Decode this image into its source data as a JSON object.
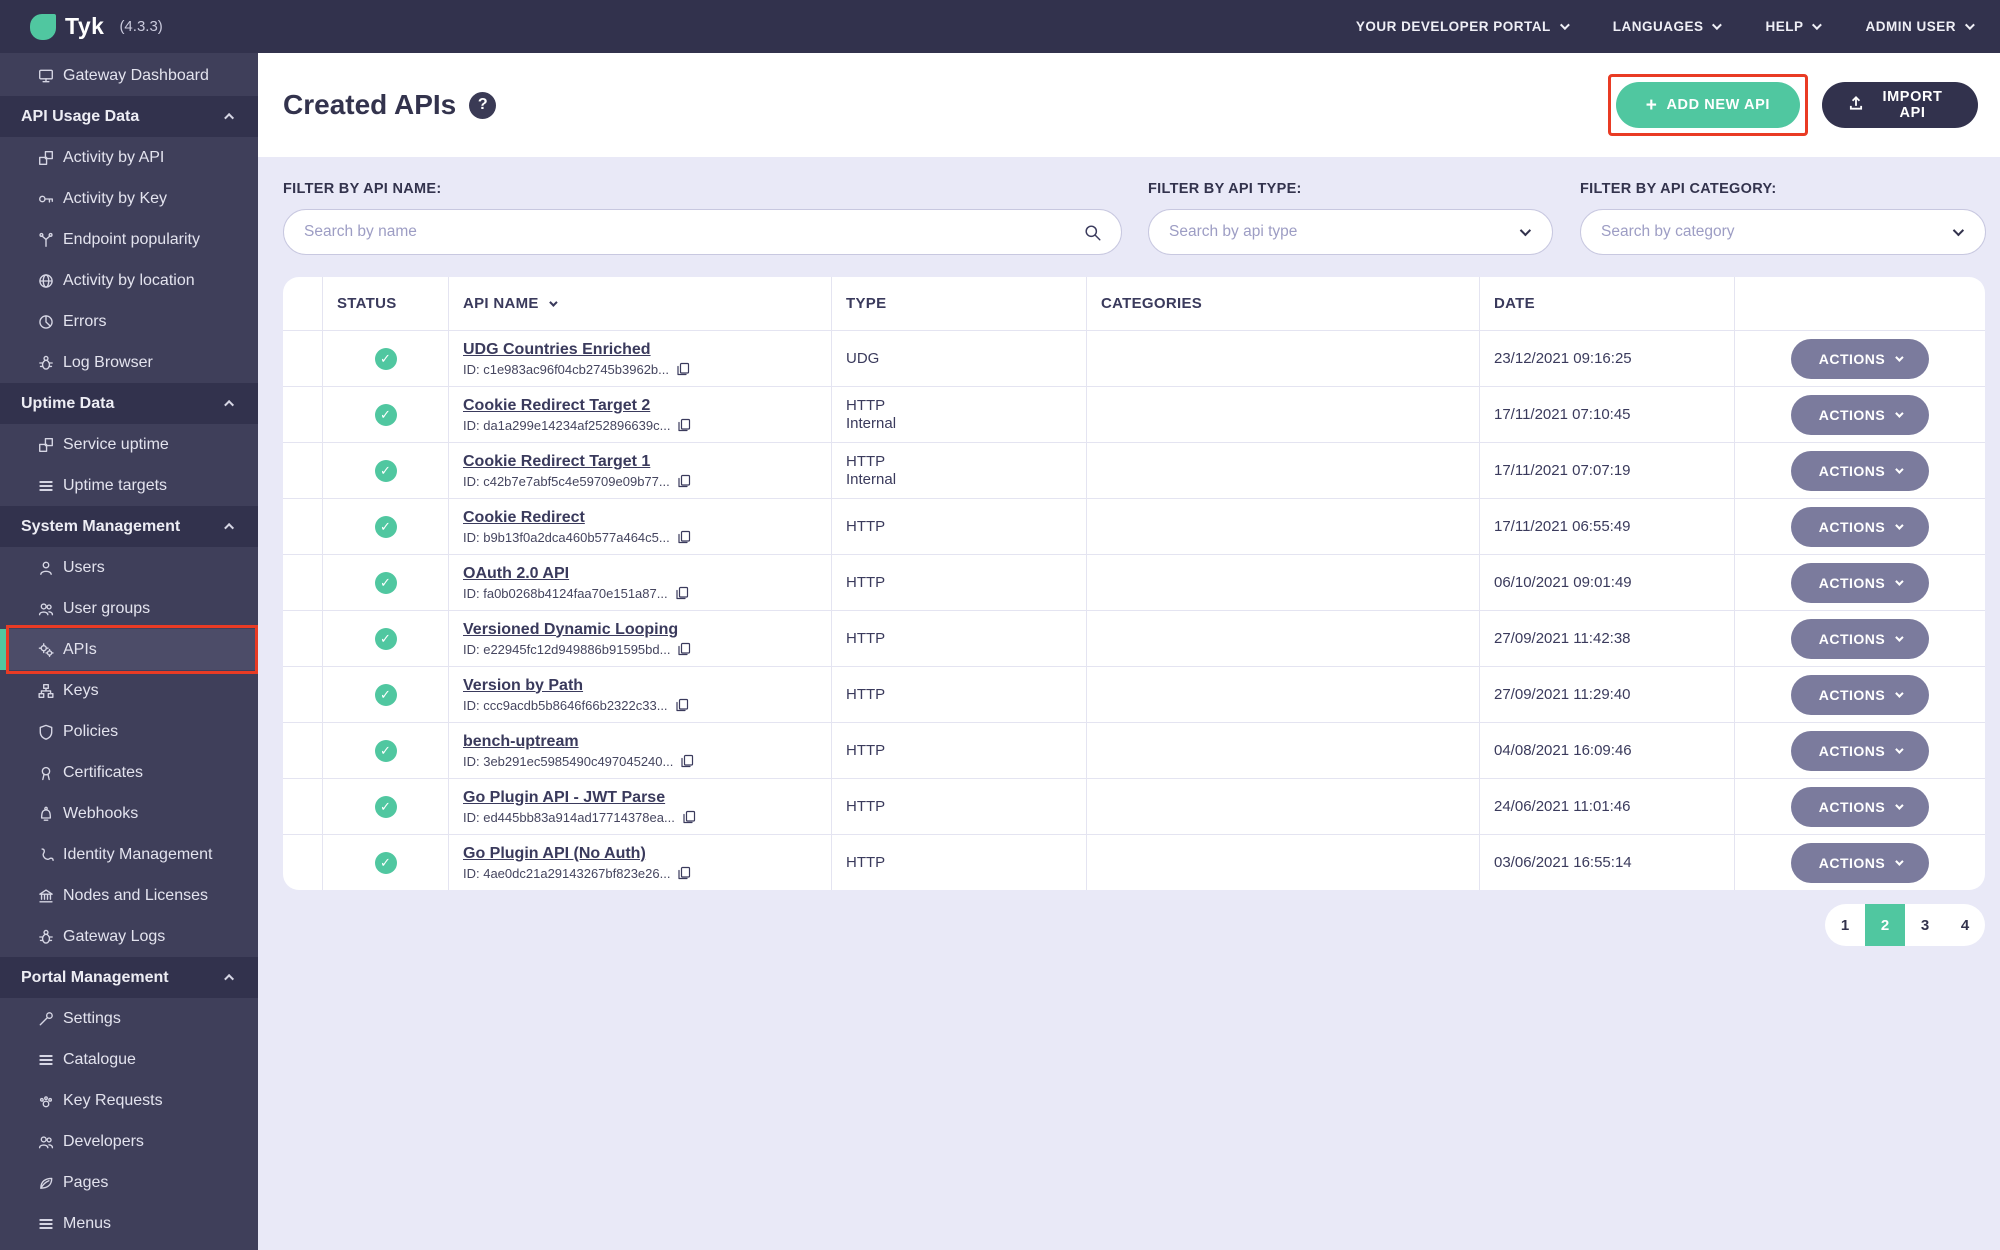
{
  "colors": {
    "topbar": "#32324D",
    "sidebar": "#3F3F5A",
    "accent_teal": "#50C7A0",
    "annotation_red": "#E93B24",
    "panel_lavender": "#E9E9F7",
    "actions_button": "#7B7B9D",
    "text_navy": "#3A3A5C"
  },
  "topbar": {
    "brand": "Tyk",
    "version": "(4.3.3)",
    "logo_icon": "tyk-leaf-icon",
    "menu": [
      {
        "label": "YOUR DEVELOPER PORTAL",
        "icon": "chevron-down-icon"
      },
      {
        "label": "LANGUAGES",
        "icon": "chevron-down-icon"
      },
      {
        "label": "HELP",
        "icon": "chevron-down-icon"
      },
      {
        "label": "ADMIN USER",
        "icon": "chevron-down-icon"
      }
    ]
  },
  "sidebar": {
    "items": [
      {
        "type": "link",
        "label": "Gateway Dashboard",
        "icon": "monitor-icon"
      },
      {
        "type": "section",
        "label": "API Usage Data",
        "icon": "chevron-up-icon"
      },
      {
        "type": "link",
        "label": "Activity by API",
        "icon": "cubes-icon"
      },
      {
        "type": "link",
        "label": "Activity by Key",
        "icon": "key-icon"
      },
      {
        "type": "link",
        "label": "Endpoint popularity",
        "icon": "branch-icon"
      },
      {
        "type": "link",
        "label": "Activity by location",
        "icon": "globe-icon"
      },
      {
        "type": "link",
        "label": "Errors",
        "icon": "pie-icon"
      },
      {
        "type": "link",
        "label": "Log Browser",
        "icon": "bug-icon"
      },
      {
        "type": "section",
        "label": "Uptime Data",
        "icon": "chevron-up-icon"
      },
      {
        "type": "link",
        "label": "Service uptime",
        "icon": "cubes-icon"
      },
      {
        "type": "link",
        "label": "Uptime targets",
        "icon": "list-icon"
      },
      {
        "type": "section",
        "label": "System Management",
        "icon": "chevron-up-icon"
      },
      {
        "type": "link",
        "label": "Users",
        "icon": "user-icon"
      },
      {
        "type": "link",
        "label": "User groups",
        "icon": "users-icon"
      },
      {
        "type": "link",
        "label": "APIs",
        "icon": "gears-icon",
        "selected": true,
        "annotated": true
      },
      {
        "type": "link",
        "label": "Keys",
        "icon": "sitemap-icon"
      },
      {
        "type": "link",
        "label": "Policies",
        "icon": "shield-icon"
      },
      {
        "type": "link",
        "label": "Certificates",
        "icon": "rosette-icon"
      },
      {
        "type": "link",
        "label": "Webhooks",
        "icon": "bell-icon"
      },
      {
        "type": "link",
        "label": "Identity Management",
        "icon": "phone-icon"
      },
      {
        "type": "link",
        "label": "Nodes and Licenses",
        "icon": "bank-icon"
      },
      {
        "type": "link",
        "label": "Gateway Logs",
        "icon": "bug-icon"
      },
      {
        "type": "section",
        "label": "Portal Management",
        "icon": "chevron-up-icon"
      },
      {
        "type": "link",
        "label": "Settings",
        "icon": "wrench-icon"
      },
      {
        "type": "link",
        "label": "Catalogue",
        "icon": "list-icon"
      },
      {
        "type": "link",
        "label": "Key Requests",
        "icon": "paw-icon"
      },
      {
        "type": "link",
        "label": "Developers",
        "icon": "users-icon"
      },
      {
        "type": "link",
        "label": "Pages",
        "icon": "leaf-icon"
      },
      {
        "type": "link",
        "label": "Menus",
        "icon": "menu-icon"
      }
    ]
  },
  "header": {
    "title": "Created APIs",
    "help_icon": "help-icon",
    "help_glyph": "?",
    "add_button": "ADD NEW API",
    "add_icon": "plus-icon",
    "add_plus": "+",
    "import_button": "IMPORT API",
    "import_icon": "upload-icon"
  },
  "filters": [
    {
      "label": "FILTER BY API NAME:",
      "placeholder": "Search by name",
      "kind": "search",
      "icon": "search-icon"
    },
    {
      "label": "FILTER BY API TYPE:",
      "placeholder": "Search by api type",
      "kind": "select",
      "icon": "chevron-down-icon"
    },
    {
      "label": "FILTER BY API CATEGORY:",
      "placeholder": "Search by category",
      "kind": "select",
      "icon": "chevron-down-icon"
    }
  ],
  "table": {
    "columns": [
      "STATUS",
      "API NAME",
      "TYPE",
      "CATEGORIES",
      "DATE"
    ],
    "sort_column": "API NAME",
    "sort_icon": "sort-chevron-icon",
    "status_icon": "check-circle-icon",
    "status_glyph": "✓",
    "copy_icon": "copy-icon",
    "actions_label": "ACTIONS",
    "rows": [
      {
        "status": "active",
        "name": "UDG Countries Enriched",
        "id": "ID: c1e983ac96f04cb2745b3962b...",
        "type": [
          "UDG"
        ],
        "categories": "",
        "date": "23/12/2021 09:16:25"
      },
      {
        "status": "active",
        "name": "Cookie Redirect Target 2",
        "id": "ID: da1a299e14234af252896639c...",
        "type": [
          "HTTP",
          "Internal"
        ],
        "categories": "",
        "date": "17/11/2021 07:10:45"
      },
      {
        "status": "active",
        "name": "Cookie Redirect Target 1",
        "id": "ID: c42b7e7abf5c4e59709e09b77...",
        "type": [
          "HTTP",
          "Internal"
        ],
        "categories": "",
        "date": "17/11/2021 07:07:19"
      },
      {
        "status": "active",
        "name": "Cookie Redirect",
        "id": "ID: b9b13f0a2dca460b577a464c5...",
        "type": [
          "HTTP"
        ],
        "categories": "",
        "date": "17/11/2021 06:55:49"
      },
      {
        "status": "active",
        "name": "OAuth 2.0 API",
        "id": "ID: fa0b0268b4124faa70e151a87...",
        "type": [
          "HTTP"
        ],
        "categories": "",
        "date": "06/10/2021 09:01:49"
      },
      {
        "status": "active",
        "name": "Versioned Dynamic Looping",
        "id": "ID: e22945fc12d949886b91595bd...",
        "type": [
          "HTTP"
        ],
        "categories": "",
        "date": "27/09/2021 11:42:38"
      },
      {
        "status": "active",
        "name": "Version by Path",
        "id": "ID: ccc9acdb5b8646f66b2322c33...",
        "type": [
          "HTTP"
        ],
        "categories": "",
        "date": "27/09/2021 11:29:40"
      },
      {
        "status": "active",
        "name": "bench-uptream",
        "id": "ID: 3eb291ec5985490c497045240...",
        "type": [
          "HTTP"
        ],
        "categories": "",
        "date": "04/08/2021 16:09:46"
      },
      {
        "status": "active",
        "name": "Go Plugin API - JWT Parse",
        "id": "ID: ed445bb83a914ad17714378ea...",
        "type": [
          "HTTP"
        ],
        "categories": "",
        "date": "24/06/2021 11:01:46"
      },
      {
        "status": "active",
        "name": "Go Plugin API (No Auth)",
        "id": "ID: 4ae0dc21a29143267bf823e26...",
        "type": [
          "HTTP"
        ],
        "categories": "",
        "date": "03/06/2021 16:55:14"
      }
    ]
  },
  "pagination": {
    "pages": [
      "1",
      "2",
      "3",
      "4"
    ],
    "active": "2"
  }
}
